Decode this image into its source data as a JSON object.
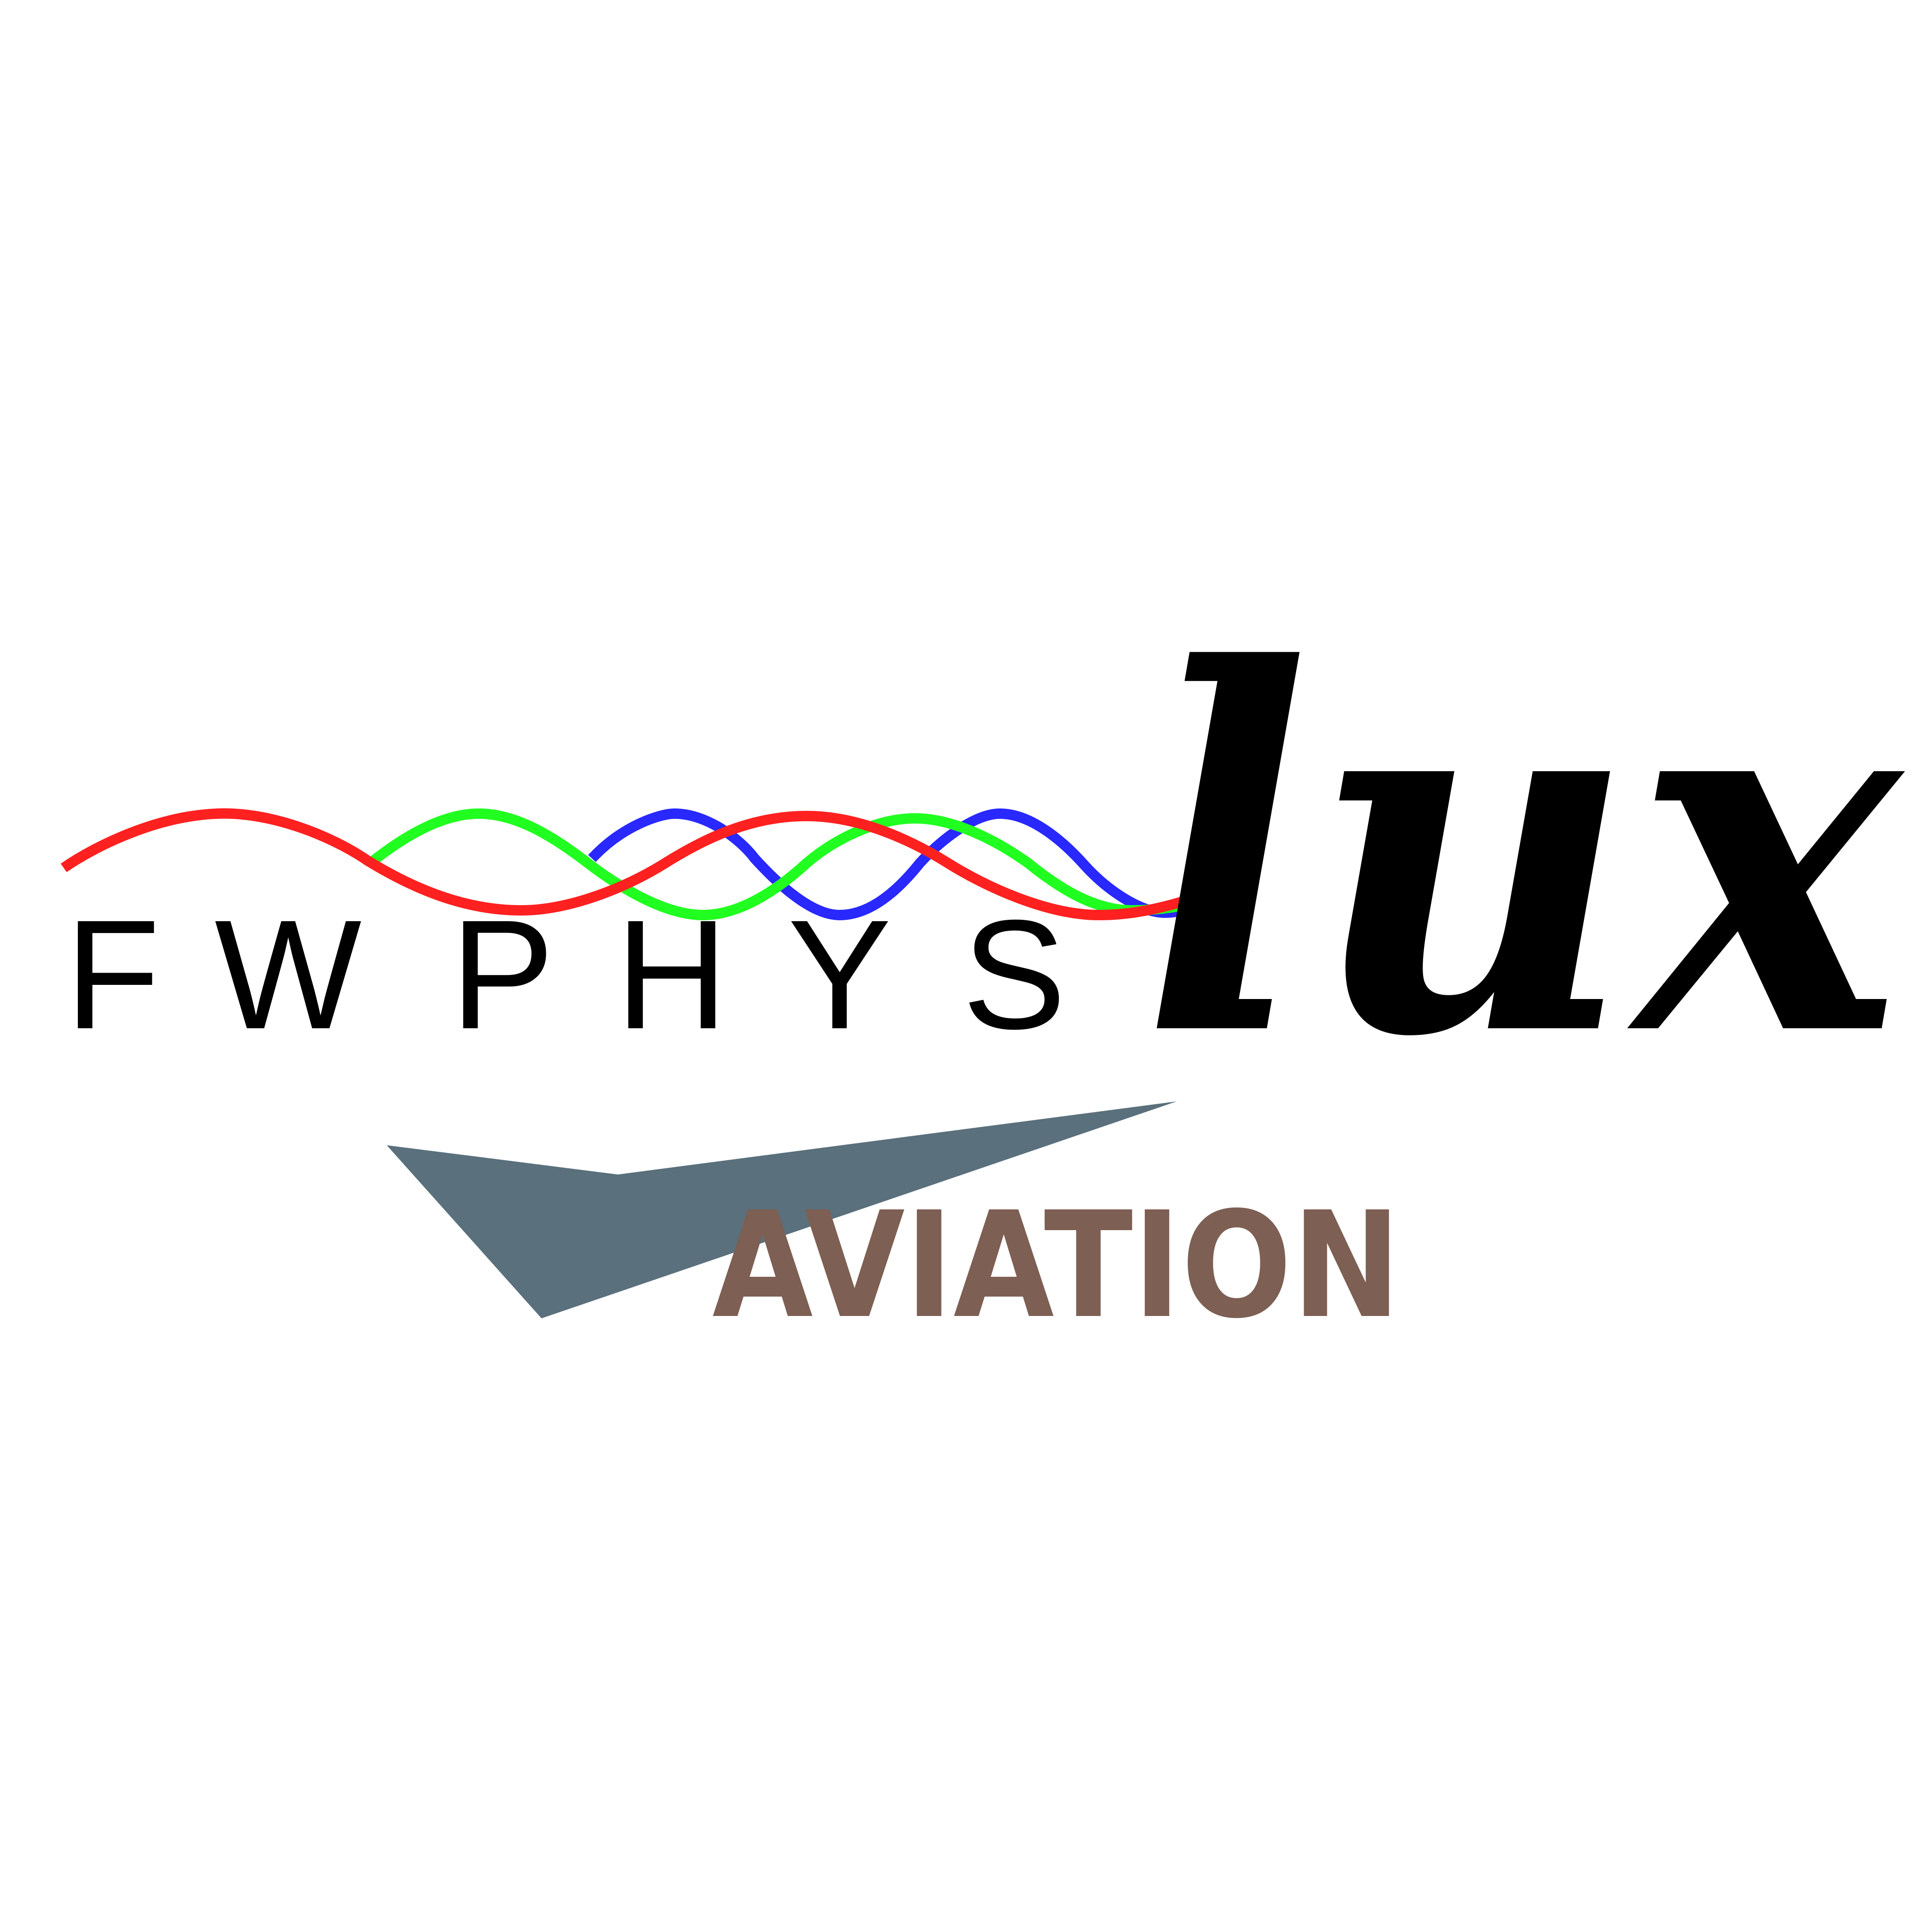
{
  "logo": {
    "wordmark_letters": [
      "F",
      "W",
      "P",
      "H",
      "Y",
      "S"
    ],
    "script_word": "lux",
    "tagline": "AVIATION"
  },
  "colors": {
    "background": "#ffffff",
    "wordmark": "#000000",
    "script_word": "#000000",
    "tagline": "#7d5f53",
    "paper_plane": "#5a707c",
    "wave_red": "#ff2020",
    "wave_green": "#20ff20",
    "wave_blue": "#2828ff"
  },
  "icons": {
    "mark": "paper-plane-icon",
    "waves": "sine-waves-icon"
  }
}
